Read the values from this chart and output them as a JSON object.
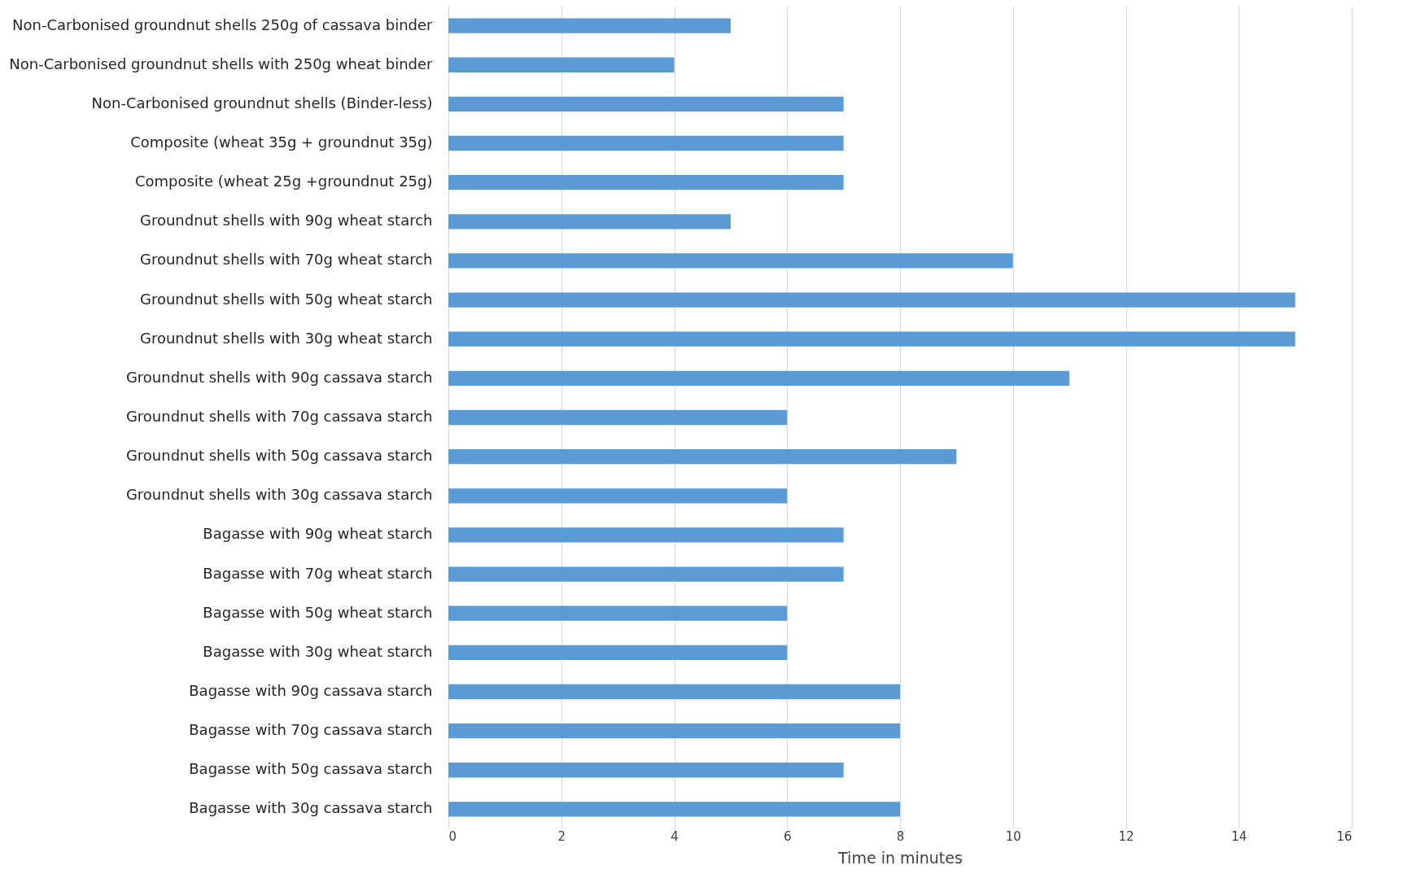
{
  "chart_data": {
    "type": "bar",
    "orientation": "horizontal",
    "categories": [
      "Non-Carbonised groundnut shells 250g of cassava binder",
      "Non-Carbonised groundnut shells with 250g wheat binder",
      "Non-Carbonised groundnut shells (Binder-less)",
      "Composite (wheat 35g + groundnut 35g)",
      "Composite (wheat 25g +groundnut 25g)",
      "Groundnut shells with 90g wheat starch",
      "Groundnut shells with 70g wheat starch",
      "Groundnut shells with 50g wheat starch",
      "Groundnut shells with 30g wheat starch",
      "Groundnut shells with 90g cassava starch",
      "Groundnut shells with 70g cassava starch",
      "Groundnut shells with 50g cassava starch",
      "Groundnut shells with 30g cassava starch",
      "Bagasse with 90g wheat starch",
      "Bagasse with 70g wheat starch",
      "Bagasse with 50g wheat starch",
      "Bagasse with 30g wheat starch",
      "Bagasse with 90g cassava starch",
      "Bagasse with 70g cassava starch",
      "Bagasse with 50g cassava starch",
      "Bagasse with 30g cassava starch"
    ],
    "values": [
      5,
      4,
      7,
      7,
      7,
      5,
      10,
      15,
      15,
      11,
      6,
      9,
      6,
      7,
      7,
      6,
      6,
      8,
      8,
      7,
      8
    ],
    "color": "#5b9bd5",
    "xlabel": "Time in minutes",
    "xlim": [
      0,
      16
    ],
    "xticks": [
      0,
      2,
      4,
      6,
      8,
      10,
      12,
      14,
      16
    ],
    "grid": "x"
  }
}
